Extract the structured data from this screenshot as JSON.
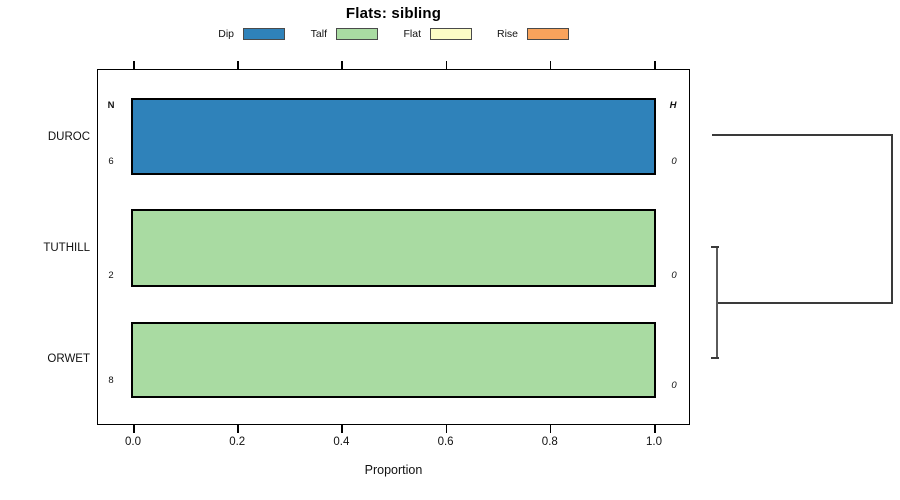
{
  "chart_data": {
    "type": "bar",
    "subtype": "horizontal-stacked-proportion-with-dendrogram",
    "title": "Flats: sibling",
    "xlabel": "Proportion",
    "xlim": [
      0,
      1
    ],
    "xticks": [
      "0.0",
      "0.2",
      "0.4",
      "0.6",
      "0.8",
      "1.0"
    ],
    "grid": false,
    "legend_position": "top",
    "legend": [
      {
        "label": "Dip",
        "color": "#2f82ba"
      },
      {
        "label": "Talf",
        "color": "#a9dba2"
      },
      {
        "label": "Flat",
        "color": "#fbfcc6"
      },
      {
        "label": "Rise",
        "color": "#f8a35c"
      }
    ],
    "row_count_header": "N",
    "row_height_header": "H",
    "rows": [
      {
        "category": "DUROC",
        "n": 6,
        "h": 0,
        "segments": [
          {
            "label": "Dip",
            "value": 1.0
          }
        ]
      },
      {
        "category": "TUTHILL",
        "n": 2,
        "h": 0,
        "segments": [
          {
            "label": "Talf",
            "value": 1.0
          }
        ]
      },
      {
        "category": "ORWET",
        "n": 8,
        "h": 0,
        "segments": [
          {
            "label": "Talf",
            "value": 1.0
          }
        ]
      }
    ],
    "dendrogram": {
      "side": "right",
      "merges": [
        {
          "members": [
            "TUTHILL",
            "ORWET"
          ]
        },
        {
          "members": [
            "DUROC",
            "TUTHILL+ORWET"
          ]
        }
      ]
    }
  }
}
